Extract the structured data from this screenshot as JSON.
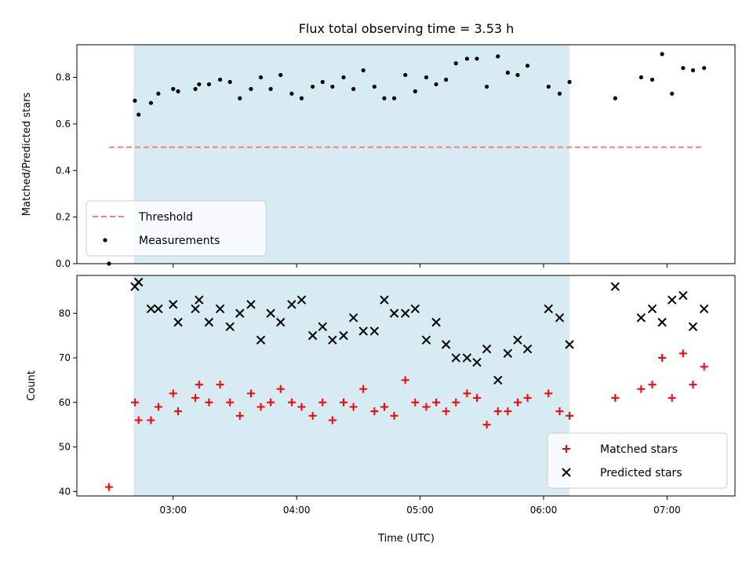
{
  "chart_data": {
    "title": "Flux total observing time = 3.53 h",
    "xlabel": "Time (UTC)",
    "x_unit": "hours UTC",
    "xlim": [
      2.22,
      7.55
    ],
    "x_ticks": [
      {
        "value": 3,
        "label": "03:00"
      },
      {
        "value": 4,
        "label": "04:00"
      },
      {
        "value": 5,
        "label": "05:00"
      },
      {
        "value": 6,
        "label": "06:00"
      },
      {
        "value": 7,
        "label": "07:00"
      }
    ],
    "shaded_span": [
      2.68,
      6.21
    ],
    "panels": [
      {
        "type": "scatter",
        "ylabel": "Matched/Predicted stars",
        "ylim": [
          0,
          0.94
        ],
        "y_ticks": [
          "0.0",
          "0.2",
          "0.4",
          "0.6",
          "0.8"
        ],
        "legend": "lower-left",
        "series": [
          {
            "name": "Threshold",
            "type": "line",
            "style": "dashed",
            "color": "#f08080",
            "x": [
              2.48,
              7.3
            ],
            "y": [
              0.5,
              0.5
            ]
          },
          {
            "name": "Measurements",
            "type": "scatter",
            "color": "#000000",
            "x": [
              2.48,
              2.69,
              2.72,
              2.82,
              2.88,
              3.0,
              3.04,
              3.18,
              3.21,
              3.29,
              3.38,
              3.46,
              3.54,
              3.63,
              3.71,
              3.79,
              3.87,
              3.96,
              4.04,
              4.13,
              4.21,
              4.29,
              4.38,
              4.46,
              4.54,
              4.63,
              4.71,
              4.79,
              4.88,
              4.96,
              5.05,
              5.13,
              5.21,
              5.29,
              5.38,
              5.46,
              5.54,
              5.63,
              5.71,
              5.79,
              5.87,
              6.04,
              6.13,
              6.21,
              6.58,
              6.79,
              6.88,
              6.96,
              7.04,
              7.13,
              7.21,
              7.3
            ],
            "y": [
              0.0,
              0.7,
              0.64,
              0.69,
              0.73,
              0.75,
              0.74,
              0.75,
              0.77,
              0.77,
              0.79,
              0.78,
              0.71,
              0.75,
              0.8,
              0.75,
              0.81,
              0.73,
              0.71,
              0.76,
              0.78,
              0.76,
              0.8,
              0.75,
              0.83,
              0.76,
              0.71,
              0.71,
              0.81,
              0.74,
              0.8,
              0.77,
              0.79,
              0.86,
              0.88,
              0.88,
              0.76,
              0.89,
              0.82,
              0.81,
              0.85,
              0.76,
              0.73,
              0.78,
              0.71,
              0.8,
              0.79,
              0.9,
              0.73,
              0.84,
              0.83,
              0.84
            ]
          }
        ]
      },
      {
        "type": "scatter",
        "ylabel": "Count",
        "ylim": [
          39,
          88.5
        ],
        "y_ticks": [
          "40",
          "50",
          "60",
          "70",
          "80"
        ],
        "legend": "lower-right",
        "series": [
          {
            "name": "Matched stars",
            "marker": "+",
            "color": "#ff0000",
            "x": [
              2.48,
              2.69,
              2.72,
              2.82,
              2.88,
              3.0,
              3.04,
              3.18,
              3.21,
              3.29,
              3.38,
              3.46,
              3.54,
              3.63,
              3.71,
              3.79,
              3.87,
              3.96,
              4.04,
              4.13,
              4.21,
              4.29,
              4.38,
              4.46,
              4.54,
              4.63,
              4.71,
              4.79,
              4.88,
              4.96,
              5.05,
              5.13,
              5.21,
              5.29,
              5.38,
              5.46,
              5.54,
              5.63,
              5.71,
              5.79,
              5.87,
              6.04,
              6.13,
              6.21,
              6.58,
              6.79,
              6.88,
              6.96,
              7.04,
              7.13,
              7.21,
              7.3
            ],
            "y": [
              41,
              60,
              56,
              56,
              59,
              62,
              58,
              61,
              64,
              60,
              64,
              60,
              57,
              62,
              59,
              60,
              63,
              60,
              59,
              57,
              60,
              56,
              60,
              59,
              63,
              58,
              59,
              57,
              65,
              60,
              59,
              60,
              58,
              60,
              62,
              61,
              55,
              58,
              58,
              60,
              61,
              62,
              58,
              57,
              61,
              63,
              64,
              70,
              61,
              71,
              64,
              68
            ]
          },
          {
            "name": "Predicted stars",
            "marker": "x",
            "color": "#000000",
            "x": [
              2.69,
              2.72,
              2.82,
              2.88,
              3.0,
              3.04,
              3.18,
              3.21,
              3.29,
              3.38,
              3.46,
              3.54,
              3.63,
              3.71,
              3.79,
              3.87,
              3.96,
              4.04,
              4.13,
              4.21,
              4.29,
              4.38,
              4.46,
              4.54,
              4.63,
              4.71,
              4.79,
              4.88,
              4.96,
              5.05,
              5.13,
              5.21,
              5.29,
              5.38,
              5.46,
              5.54,
              5.63,
              5.71,
              5.79,
              5.87,
              6.04,
              6.13,
              6.21,
              6.58,
              6.79,
              6.88,
              6.96,
              7.04,
              7.13,
              7.21,
              7.3
            ],
            "y": [
              86,
              87,
              81,
              81,
              82,
              78,
              81,
              83,
              78,
              81,
              77,
              80,
              82,
              74,
              80,
              78,
              82,
              83,
              75,
              77,
              74,
              75,
              79,
              76,
              76,
              83,
              80,
              80,
              81,
              74,
              78,
              73,
              70,
              70,
              69,
              72,
              65,
              71,
              74,
              72,
              81,
              79,
              73,
              86,
              79,
              81,
              78,
              83,
              84,
              77,
              81
            ]
          }
        ]
      }
    ]
  }
}
